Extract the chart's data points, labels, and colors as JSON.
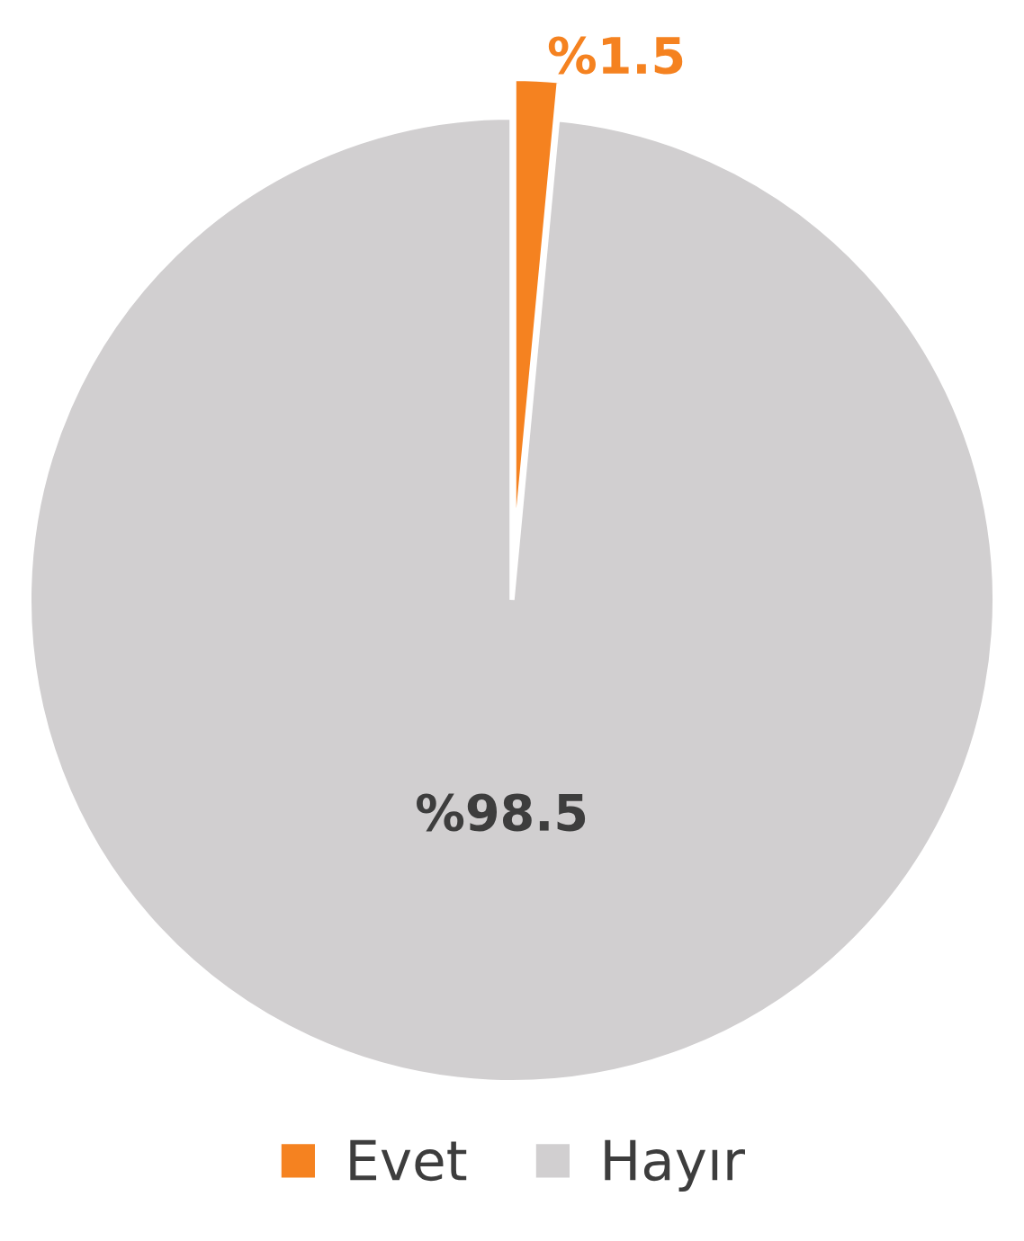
{
  "chart_data": {
    "type": "pie",
    "categories": [
      "Evet",
      "Hayır"
    ],
    "values": [
      1.5,
      98.5
    ],
    "colors": [
      "#f58220",
      "#d1cfd0"
    ],
    "value_labels": [
      "%1.5",
      "%98.5"
    ],
    "legend": "bottom"
  }
}
